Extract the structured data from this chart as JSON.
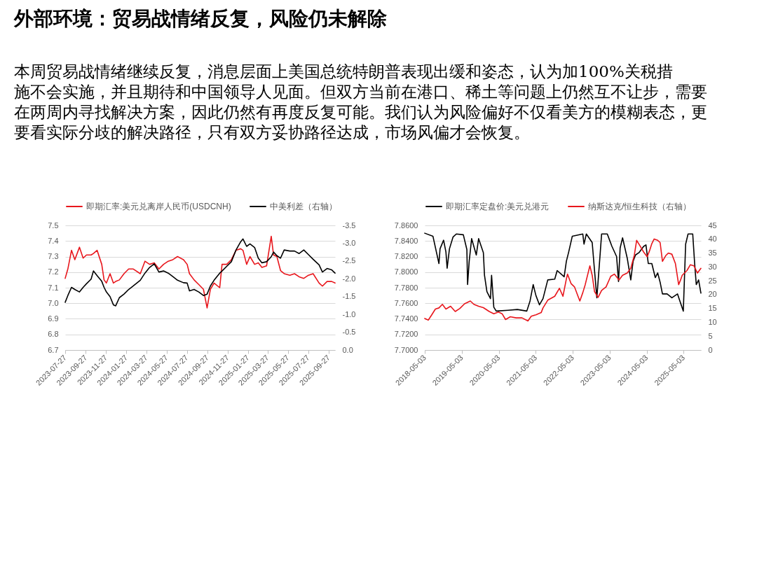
{
  "chart_data": [
    {
      "type": "line",
      "title": "外部环境：贸易战情绪反复，风险仍未解除",
      "subtitle": "本周贸易战情绪继续反复，消息层面上美国总统特朗普表现出缓和姿态，认为加100%关税措施不会实施，并且期待和中国领导人见面。但双方当前在港口、稀土等问题上仍然互不让步，需要在两周内寻找解决方案，因此仍然有再度反复可能。我们认为风险偏好不仅看美方的模糊表态，更要看实际分歧的解决路径，只有双方妥协路径达成，市场风偏才会恢复。",
      "x": [
        "2023-07-27",
        "2023-08-04",
        "2023-08-15",
        "2023-08-25",
        "2023-09-08",
        "2023-09-19",
        "2023-09-29",
        "2023-10-13",
        "2023-10-20",
        "2023-10-31",
        "2023-11-14",
        "2023-11-21",
        "2023-11-28",
        "2023-12-09",
        "2023-12-19",
        "2023-12-26",
        "2024-01-06",
        "2024-01-20",
        "2024-02-03",
        "2024-02-17",
        "2024-03-09",
        "2024-03-23",
        "2024-04-06",
        "2024-04-20",
        "2024-05-04",
        "2024-05-18",
        "2024-06-01",
        "2024-06-15",
        "2024-06-29",
        "2024-07-17",
        "2024-07-28",
        "2024-08-04",
        "2024-08-18",
        "2024-09-01",
        "2024-09-15",
        "2024-09-26",
        "2024-10-06",
        "2024-10-17",
        "2024-11-03",
        "2024-11-10",
        "2024-11-24",
        "2024-12-08",
        "2024-12-22",
        "2025-01-05",
        "2025-01-12",
        "2025-01-23",
        "2025-02-02",
        "2025-02-16",
        "2025-02-27",
        "2025-03-10",
        "2025-03-24",
        "2025-04-07",
        "2025-04-14",
        "2025-04-24",
        "2025-05-05",
        "2025-05-16",
        "2025-06-02",
        "2025-06-16",
        "2025-06-30",
        "2025-07-14",
        "2025-07-28",
        "2025-08-11",
        "2025-08-29",
        "2025-09-08",
        "2025-09-22",
        "2025-10-06",
        "2025-10-16"
      ],
      "series": [
        {
          "name": "即期汇率:美元兑离岸人民币(USDCNH)",
          "color": "#e8161c",
          "values": [
            7.16,
            7.22,
            7.34,
            7.28,
            7.36,
            7.29,
            7.31,
            7.31,
            7.32,
            7.34,
            7.25,
            7.15,
            7.13,
            7.19,
            7.13,
            7.14,
            7.15,
            7.19,
            7.22,
            7.22,
            7.19,
            7.27,
            7.25,
            7.26,
            7.22,
            7.25,
            7.27,
            7.28,
            7.3,
            7.28,
            7.25,
            7.19,
            7.15,
            7.12,
            7.09,
            6.97,
            7.09,
            7.13,
            7.1,
            7.25,
            7.25,
            7.28,
            7.34,
            7.35,
            7.34,
            7.25,
            7.3,
            7.25,
            7.26,
            7.23,
            7.24,
            7.43,
            7.31,
            7.3,
            7.21,
            7.19,
            7.18,
            7.19,
            7.17,
            7.16,
            7.18,
            7.19,
            7.13,
            7.11,
            7.14,
            7.14,
            7.13
          ]
        },
        {
          "name": "中美利差（右轴）",
          "color": "#000000",
          "axis": "y2",
          "values": [
            -1.34,
            -1.53,
            -1.76,
            -1.7,
            -1.63,
            -1.76,
            -1.86,
            -1.99,
            -2.22,
            -2.09,
            -1.93,
            -1.76,
            -1.63,
            -1.5,
            -1.27,
            -1.24,
            -1.47,
            -1.57,
            -1.7,
            -1.8,
            -1.96,
            -2.16,
            -2.32,
            -2.42,
            -2.19,
            -2.22,
            -2.16,
            -2.06,
            -1.96,
            -1.89,
            -1.88,
            -1.66,
            -1.7,
            -1.63,
            -1.53,
            -1.57,
            -1.8,
            -1.96,
            -2.16,
            -2.22,
            -2.35,
            -2.48,
            -2.81,
            -3.04,
            -3.12,
            -2.91,
            -2.98,
            -2.88,
            -2.58,
            -2.45,
            -2.48,
            -2.62,
            -2.75,
            -2.65,
            -2.58,
            -2.81,
            -2.78,
            -2.78,
            -2.71,
            -2.81,
            -2.68,
            -2.55,
            -2.39,
            -2.19,
            -2.29,
            -2.25,
            -2.16
          ]
        }
      ],
      "xlim": [
        "2023-07-27",
        "2025-10-16"
      ],
      "xticks": [
        "2023-07-27",
        "2023-09-27",
        "2023-11-27",
        "2024-01-27",
        "2024-03-27",
        "2024-05-27",
        "2024-07-27",
        "2024-09-27",
        "2024-11-27",
        "2025-01-27",
        "2025-03-27",
        "2025-05-27",
        "2025-07-27",
        "2025-09-27"
      ],
      "ylim": [
        6.7,
        7.5
      ],
      "yticks": [
        6.7,
        6.8,
        6.9,
        {
          "value": 7.0,
          "label": "7.0"
        },
        7.1,
        7.2,
        7.3,
        7.4,
        7.5
      ],
      "y2lim": [
        0,
        -3.5
      ],
      "y2ticks": [
        {
          "value": 0,
          "label": "0.0"
        },
        -0.5,
        {
          "value": -1,
          "label": "-1.0"
        },
        -1.5,
        {
          "value": -2,
          "label": "-2.0"
        },
        -2.5,
        {
          "value": -3,
          "label": "-3.0"
        },
        -3.5
      ],
      "grid": "y",
      "legend": "top"
    },
    {
      "type": "line",
      "series": [
        {
          "name": "即期汇率定盘价:美元兑港元",
          "color": "#000000",
          "x": [
            "2018-05-03",
            "2018-07-23",
            "2018-09-20",
            "2018-10-01",
            "2018-11-05",
            "2018-11-28",
            "2018-12-10",
            "2019-01-02",
            "2019-02-06",
            "2019-03-11",
            "2019-05-19",
            "2019-06-23",
            "2019-06-30",
            "2019-07-16",
            "2019-08-09",
            "2019-09-24",
            "2019-10-17",
            "2019-12-03",
            "2019-12-14",
            "2020-01-07",
            "2020-02-11",
            "2020-02-22",
            "2020-03-15",
            "2020-04-08",
            "2020-08-02",
            "2020-11-03",
            "2021-02-04",
            "2021-03-08",
            "2021-04-08",
            "2021-05-05",
            "2021-06-09",
            "2021-07-14",
            "2021-08-30",
            "2021-11-07",
            "2021-12-01",
            "2022-02-08",
            "2022-03-02",
            "2022-03-25",
            "2022-04-29",
            "2022-08-11",
            "2022-08-23",
            "2022-09-15",
            "2022-11-12",
            "2022-12-05",
            "2022-12-28",
            "2023-01-31",
            "2023-02-13",
            "2023-04-10",
            "2023-05-03",
            "2023-05-26",
            "2023-07-11",
            "2023-07-30",
            "2023-08-15",
            "2023-09-08",
            "2023-10-01",
            "2023-10-24",
            "2023-11-28",
            "2023-12-21",
            "2024-01-14",
            "2024-02-17",
            "2024-04-03",
            "2024-04-26",
            "2024-05-19",
            "2024-06-23",
            "2024-07-27",
            "2024-08-20",
            "2024-09-13",
            "2024-10-06",
            "2024-11-21",
            "2025-01-07",
            "2025-03-04",
            "2025-03-27",
            "2025-04-30",
            "2025-05-23",
            "2025-06-16",
            "2025-08-01",
            "2025-08-20",
            "2025-09-05",
            "2025-09-28",
            "2025-10-21"
          ],
          "values": [
            7.85,
            7.846,
            7.811,
            7.83,
            7.841,
            7.826,
            7.805,
            7.83,
            7.845,
            7.849,
            7.848,
            7.829,
            7.784,
            7.814,
            7.843,
            7.822,
            7.843,
            7.825,
            7.796,
            7.775,
            7.766,
            7.796,
            7.755,
            7.75,
            7.751,
            7.752,
            7.75,
            7.763,
            7.784,
            7.77,
            7.758,
            7.766,
            7.79,
            7.791,
            7.802,
            7.794,
            7.814,
            7.826,
            7.846,
            7.849,
            7.836,
            7.849,
            7.838,
            7.802,
            7.767,
            7.826,
            7.849,
            7.849,
            7.841,
            7.833,
            7.82,
            7.788,
            7.831,
            7.844,
            7.831,
            7.818,
            7.79,
            7.814,
            7.822,
            7.825,
            7.833,
            7.835,
            7.811,
            7.811,
            7.793,
            7.799,
            7.787,
            7.772,
            7.772,
            7.767,
            7.772,
            7.763,
            7.75,
            7.836,
            7.849,
            7.849,
            7.811,
            7.784,
            7.79,
            7.773
          ]
        },
        {
          "name": "纳斯达克/恒生科技（右轴）",
          "color": "#e8161c",
          "axis": "y2",
          "x": [
            "2018-05-03",
            "2018-06-07",
            "2018-07-11",
            "2018-08-16",
            "2018-09-20",
            "2018-10-24",
            "2018-11-28",
            "2019-01-13",
            "2019-02-28",
            "2019-04-15",
            "2019-05-31",
            "2019-07-27",
            "2019-08-31",
            "2019-10-17",
            "2019-12-03",
            "2020-01-30",
            "2020-03-15",
            "2020-04-30",
            "2020-06-05",
            "2020-07-09",
            "2020-08-25",
            "2020-10-22",
            "2020-12-19",
            "2021-02-15",
            "2021-03-20",
            "2021-05-05",
            "2021-06-26",
            "2021-07-14",
            "2021-08-30",
            "2021-11-07",
            "2021-12-23",
            "2022-01-27",
            "2022-03-02",
            "2022-03-13",
            "2022-04-17",
            "2022-05-21",
            "2022-06-25",
            "2022-07-13",
            "2022-08-11",
            "2022-09-04",
            "2022-10-20",
            "2022-11-12",
            "2022-12-05",
            "2023-01-09",
            "2023-02-13",
            "2023-03-29",
            "2023-05-14",
            "2023-06-19",
            "2023-08-04",
            "2023-09-08",
            "2023-10-24",
            "2023-11-28",
            "2024-01-02",
            "2024-01-25",
            "2024-02-29",
            "2024-04-03",
            "2024-05-08",
            "2024-05-31",
            "2024-06-23",
            "2024-07-16",
            "2024-08-20",
            "2024-09-13",
            "2024-10-06",
            "2024-11-10",
            "2024-12-03",
            "2025-01-07",
            "2025-02-11",
            "2025-03-15",
            "2025-04-03",
            "2025-04-19",
            "2025-06-05",
            "2025-07-09",
            "2025-08-13",
            "2025-09-17",
            "2025-10-21"
          ],
          "values": [
            11.4,
            10.8,
            12.7,
            14.8,
            15.2,
            16.5,
            14.8,
            15.8,
            13.9,
            15.0,
            16.7,
            17.7,
            16.5,
            15.8,
            15.3,
            13.9,
            13.1,
            13.7,
            13.1,
            11.0,
            12.0,
            11.6,
            11.6,
            10.5,
            12.2,
            12.7,
            13.5,
            15.2,
            18.0,
            19.4,
            22.3,
            19.4,
            25.7,
            27.4,
            24.0,
            22.8,
            19.4,
            17.7,
            20.7,
            23.6,
            30.4,
            27.0,
            21.1,
            19.0,
            21.5,
            22.8,
            26.6,
            27.4,
            25.3,
            27.0,
            27.8,
            29.5,
            34.2,
            39.6,
            37.5,
            35.4,
            33.7,
            35.8,
            38.4,
            40.1,
            39.6,
            38.8,
            32.0,
            34.2,
            35.0,
            34.6,
            31.2,
            23.6,
            25.3,
            27.0,
            28.7,
            30.8,
            30.4,
            27.8,
            29.5
          ]
        }
      ],
      "xlim": [
        "2018-05-03",
        "2025-10-21"
      ],
      "xticks": [
        "2018-05-03",
        "2019-05-03",
        "2020-05-03",
        "2021-05-03",
        "2022-05-03",
        "2023-05-03",
        "2024-05-03",
        "2025-05-03"
      ],
      "ylim": [
        7.7,
        7.86
      ],
      "yticks": [
        {
          "value": 7.7,
          "label": "7.7000"
        },
        {
          "value": 7.72,
          "label": "7.7200"
        },
        {
          "value": 7.74,
          "label": "7.7400"
        },
        {
          "value": 7.76,
          "label": "7.7600"
        },
        {
          "value": 7.78,
          "label": "7.7800"
        },
        {
          "value": 7.8,
          "label": "7.8000"
        },
        {
          "value": 7.82,
          "label": "7.8200"
        },
        {
          "value": 7.84,
          "label": "7.8400"
        },
        {
          "value": 7.86,
          "label": "7.8600"
        }
      ],
      "y2lim": [
        0,
        45
      ],
      "y2ticks": [
        0,
        5,
        10,
        15,
        20,
        25,
        30,
        35,
        40,
        45
      ],
      "grid": "y",
      "legend": "top"
    }
  ]
}
